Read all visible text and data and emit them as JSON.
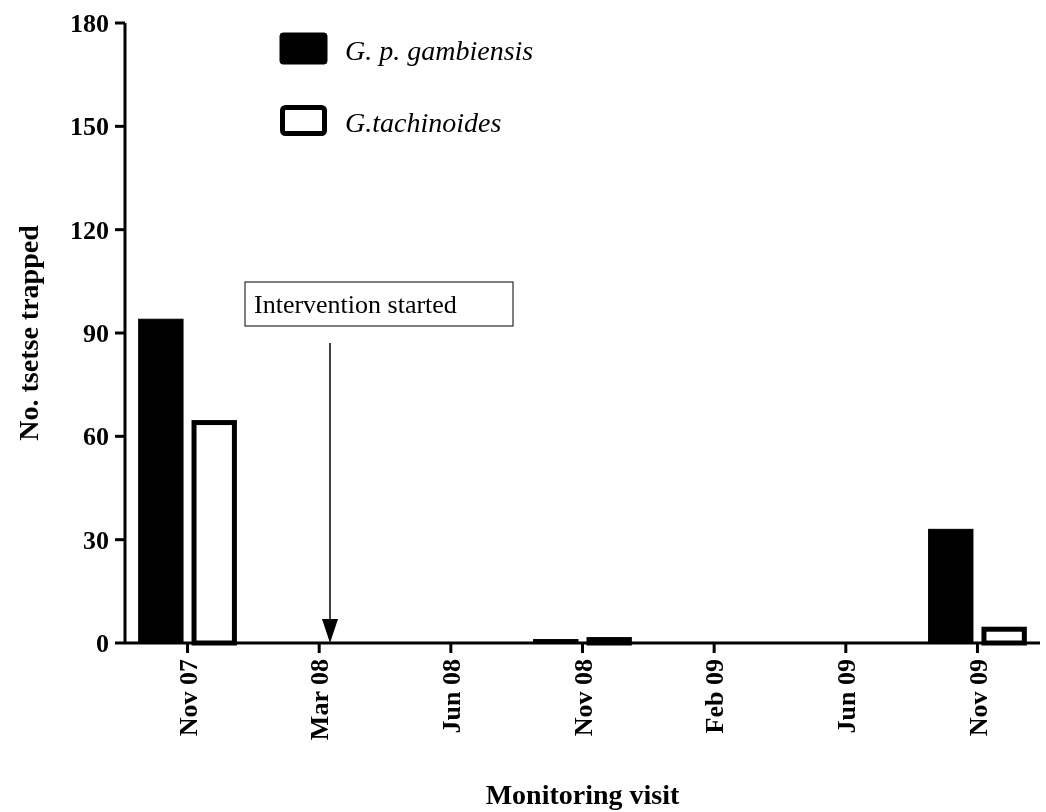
{
  "chart_data": {
    "type": "bar",
    "xlabel": "Monitoring visit",
    "ylabel": "No. tsetse trapped",
    "categories": [
      "Nov 07",
      "Mar 08",
      "Jun 08",
      "Nov 08",
      "Feb 09",
      "Jun 09",
      "Nov 09"
    ],
    "series": [
      {
        "name": "G. p. gambiensis",
        "color": "#000000",
        "values": [
          94,
          0,
          0,
          1,
          0,
          0,
          33
        ]
      },
      {
        "name": "G.tachinoides",
        "color": "#ffffff",
        "values": [
          64,
          0,
          0,
          1,
          0,
          0,
          4
        ]
      }
    ],
    "ylim": [
      0,
      180
    ],
    "yticks": [
      0,
      30,
      60,
      90,
      120,
      150,
      180
    ],
    "grid": false,
    "legend": "top left",
    "annotations": [
      "Intervention started"
    ]
  }
}
